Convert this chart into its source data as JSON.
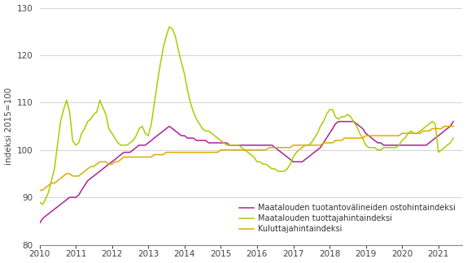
{
  "ylabel": "indeksi 2015=100",
  "ylim": [
    80,
    130
  ],
  "yticks": [
    80,
    90,
    100,
    110,
    120,
    130
  ],
  "line_colors": {
    "ostohinta": "#aa2299",
    "tuottaja": "#aacc00",
    "kuluttaja": "#ddaa00"
  },
  "legend_labels": [
    "Maatalouden tuotantovälineiden ostohintaindeksi",
    "Maatalouden tuottajahintaindeksi",
    "Kuluttajahintaindeksi"
  ],
  "ostohinta": [
    84.5,
    85.5,
    86.0,
    86.5,
    87.0,
    87.5,
    88.0,
    88.5,
    89.0,
    89.5,
    90.0,
    90.0,
    90.0,
    90.5,
    91.5,
    92.5,
    93.5,
    94.0,
    94.5,
    95.0,
    95.5,
    96.0,
    96.5,
    97.0,
    97.5,
    98.0,
    98.5,
    99.0,
    99.5,
    99.5,
    99.5,
    100.0,
    100.5,
    101.0,
    101.0,
    101.0,
    101.5,
    102.0,
    102.5,
    103.0,
    103.5,
    104.0,
    104.5,
    105.0,
    104.5,
    104.0,
    103.5,
    103.0,
    103.0,
    102.5,
    102.5,
    102.5,
    102.0,
    102.0,
    102.0,
    102.0,
    101.5,
    101.5,
    101.5,
    101.5,
    101.5,
    101.5,
    101.5,
    101.0,
    101.0,
    101.0,
    101.0,
    101.0,
    101.0,
    101.0,
    101.0,
    101.0,
    101.0,
    101.0,
    101.0,
    101.0,
    101.0,
    101.0,
    100.5,
    100.0,
    99.5,
    99.0,
    98.5,
    98.0,
    97.5,
    97.5,
    97.5,
    97.5,
    98.0,
    98.5,
    99.0,
    99.5,
    100.0,
    100.5,
    101.5,
    102.5,
    103.5,
    104.5,
    105.5,
    106.0,
    106.0,
    106.0,
    106.0,
    106.0,
    106.0,
    105.5,
    105.0,
    104.5,
    103.5,
    103.0,
    102.5,
    102.0,
    101.5,
    101.5,
    101.0,
    101.0,
    101.0,
    101.0,
    101.0,
    101.0,
    101.0,
    101.0,
    101.0,
    101.0,
    101.0,
    101.0,
    101.0,
    101.0,
    101.0,
    101.5,
    102.0,
    102.5,
    103.0,
    103.5,
    104.0,
    104.5,
    105.0,
    106.0,
    107.0,
    108.0,
    108.5
  ],
  "tuottaja": [
    89.0,
    88.5,
    89.5,
    91.0,
    93.5,
    96.0,
    101.0,
    106.0,
    108.5,
    110.5,
    108.0,
    102.0,
    101.0,
    101.5,
    103.5,
    104.5,
    106.0,
    106.5,
    107.5,
    108.0,
    110.5,
    109.0,
    107.5,
    104.5,
    103.5,
    102.5,
    101.5,
    101.0,
    101.0,
    101.0,
    101.5,
    102.0,
    103.0,
    104.5,
    105.0,
    103.5,
    103.0,
    105.5,
    109.5,
    114.0,
    118.0,
    121.5,
    124.0,
    126.0,
    125.5,
    124.0,
    121.0,
    118.5,
    116.0,
    112.5,
    110.0,
    108.0,
    106.5,
    105.5,
    104.5,
    104.0,
    104.0,
    103.5,
    103.0,
    102.5,
    102.0,
    101.5,
    101.0,
    101.0,
    101.0,
    101.0,
    101.0,
    100.5,
    100.0,
    99.5,
    99.0,
    98.5,
    97.5,
    97.5,
    97.0,
    97.0,
    96.5,
    96.0,
    96.0,
    95.5,
    95.5,
    95.5,
    96.0,
    97.0,
    98.5,
    99.5,
    100.0,
    100.5,
    101.0,
    101.0,
    101.5,
    102.5,
    103.5,
    105.0,
    106.0,
    107.5,
    108.5,
    108.5,
    107.0,
    106.5,
    107.0,
    107.0,
    107.5,
    107.0,
    106.0,
    105.0,
    103.5,
    102.5,
    101.0,
    100.5,
    100.5,
    100.5,
    100.0,
    100.0,
    100.5,
    100.5,
    100.5,
    100.5,
    100.5,
    101.0,
    102.0,
    102.5,
    103.5,
    104.0,
    103.5,
    103.5,
    104.0,
    104.5,
    105.0,
    105.5,
    106.0,
    105.5,
    99.5,
    100.0,
    100.5,
    101.0,
    101.5,
    102.5,
    103.5,
    105.0,
    105.5
  ],
  "kuluttaja": [
    91.5,
    91.5,
    92.0,
    92.5,
    93.0,
    93.0,
    93.5,
    94.0,
    94.5,
    95.0,
    95.0,
    94.5,
    94.5,
    94.5,
    95.0,
    95.5,
    96.0,
    96.5,
    96.5,
    97.0,
    97.5,
    97.5,
    97.5,
    97.0,
    97.0,
    97.5,
    97.5,
    98.0,
    98.5,
    98.5,
    98.5,
    98.5,
    98.5,
    98.5,
    98.5,
    98.5,
    98.5,
    98.5,
    99.0,
    99.0,
    99.0,
    99.0,
    99.5,
    99.5,
    99.5,
    99.5,
    99.5,
    99.5,
    99.5,
    99.5,
    99.5,
    99.5,
    99.5,
    99.5,
    99.5,
    99.5,
    99.5,
    99.5,
    99.5,
    99.5,
    100.0,
    100.0,
    100.0,
    100.0,
    100.0,
    100.0,
    100.0,
    100.0,
    100.0,
    100.0,
    100.0,
    100.0,
    100.0,
    100.0,
    100.0,
    100.0,
    100.5,
    100.5,
    100.5,
    100.5,
    100.5,
    100.5,
    100.5,
    100.5,
    101.0,
    101.0,
    101.0,
    101.0,
    101.0,
    101.0,
    101.0,
    101.0,
    101.0,
    101.0,
    101.5,
    101.5,
    101.5,
    101.5,
    102.0,
    102.0,
    102.0,
    102.5,
    102.5,
    102.5,
    102.5,
    102.5,
    102.5,
    102.5,
    103.0,
    103.0,
    103.0,
    103.0,
    103.0,
    103.0,
    103.0,
    103.0,
    103.0,
    103.0,
    103.0,
    103.0,
    103.5,
    103.5,
    103.5,
    103.5,
    103.5,
    103.5,
    103.5,
    104.0,
    104.0,
    104.0,
    104.5,
    104.5,
    104.5,
    104.5,
    105.0,
    105.0,
    105.0,
    105.0,
    105.5,
    105.5,
    105.5
  ]
}
